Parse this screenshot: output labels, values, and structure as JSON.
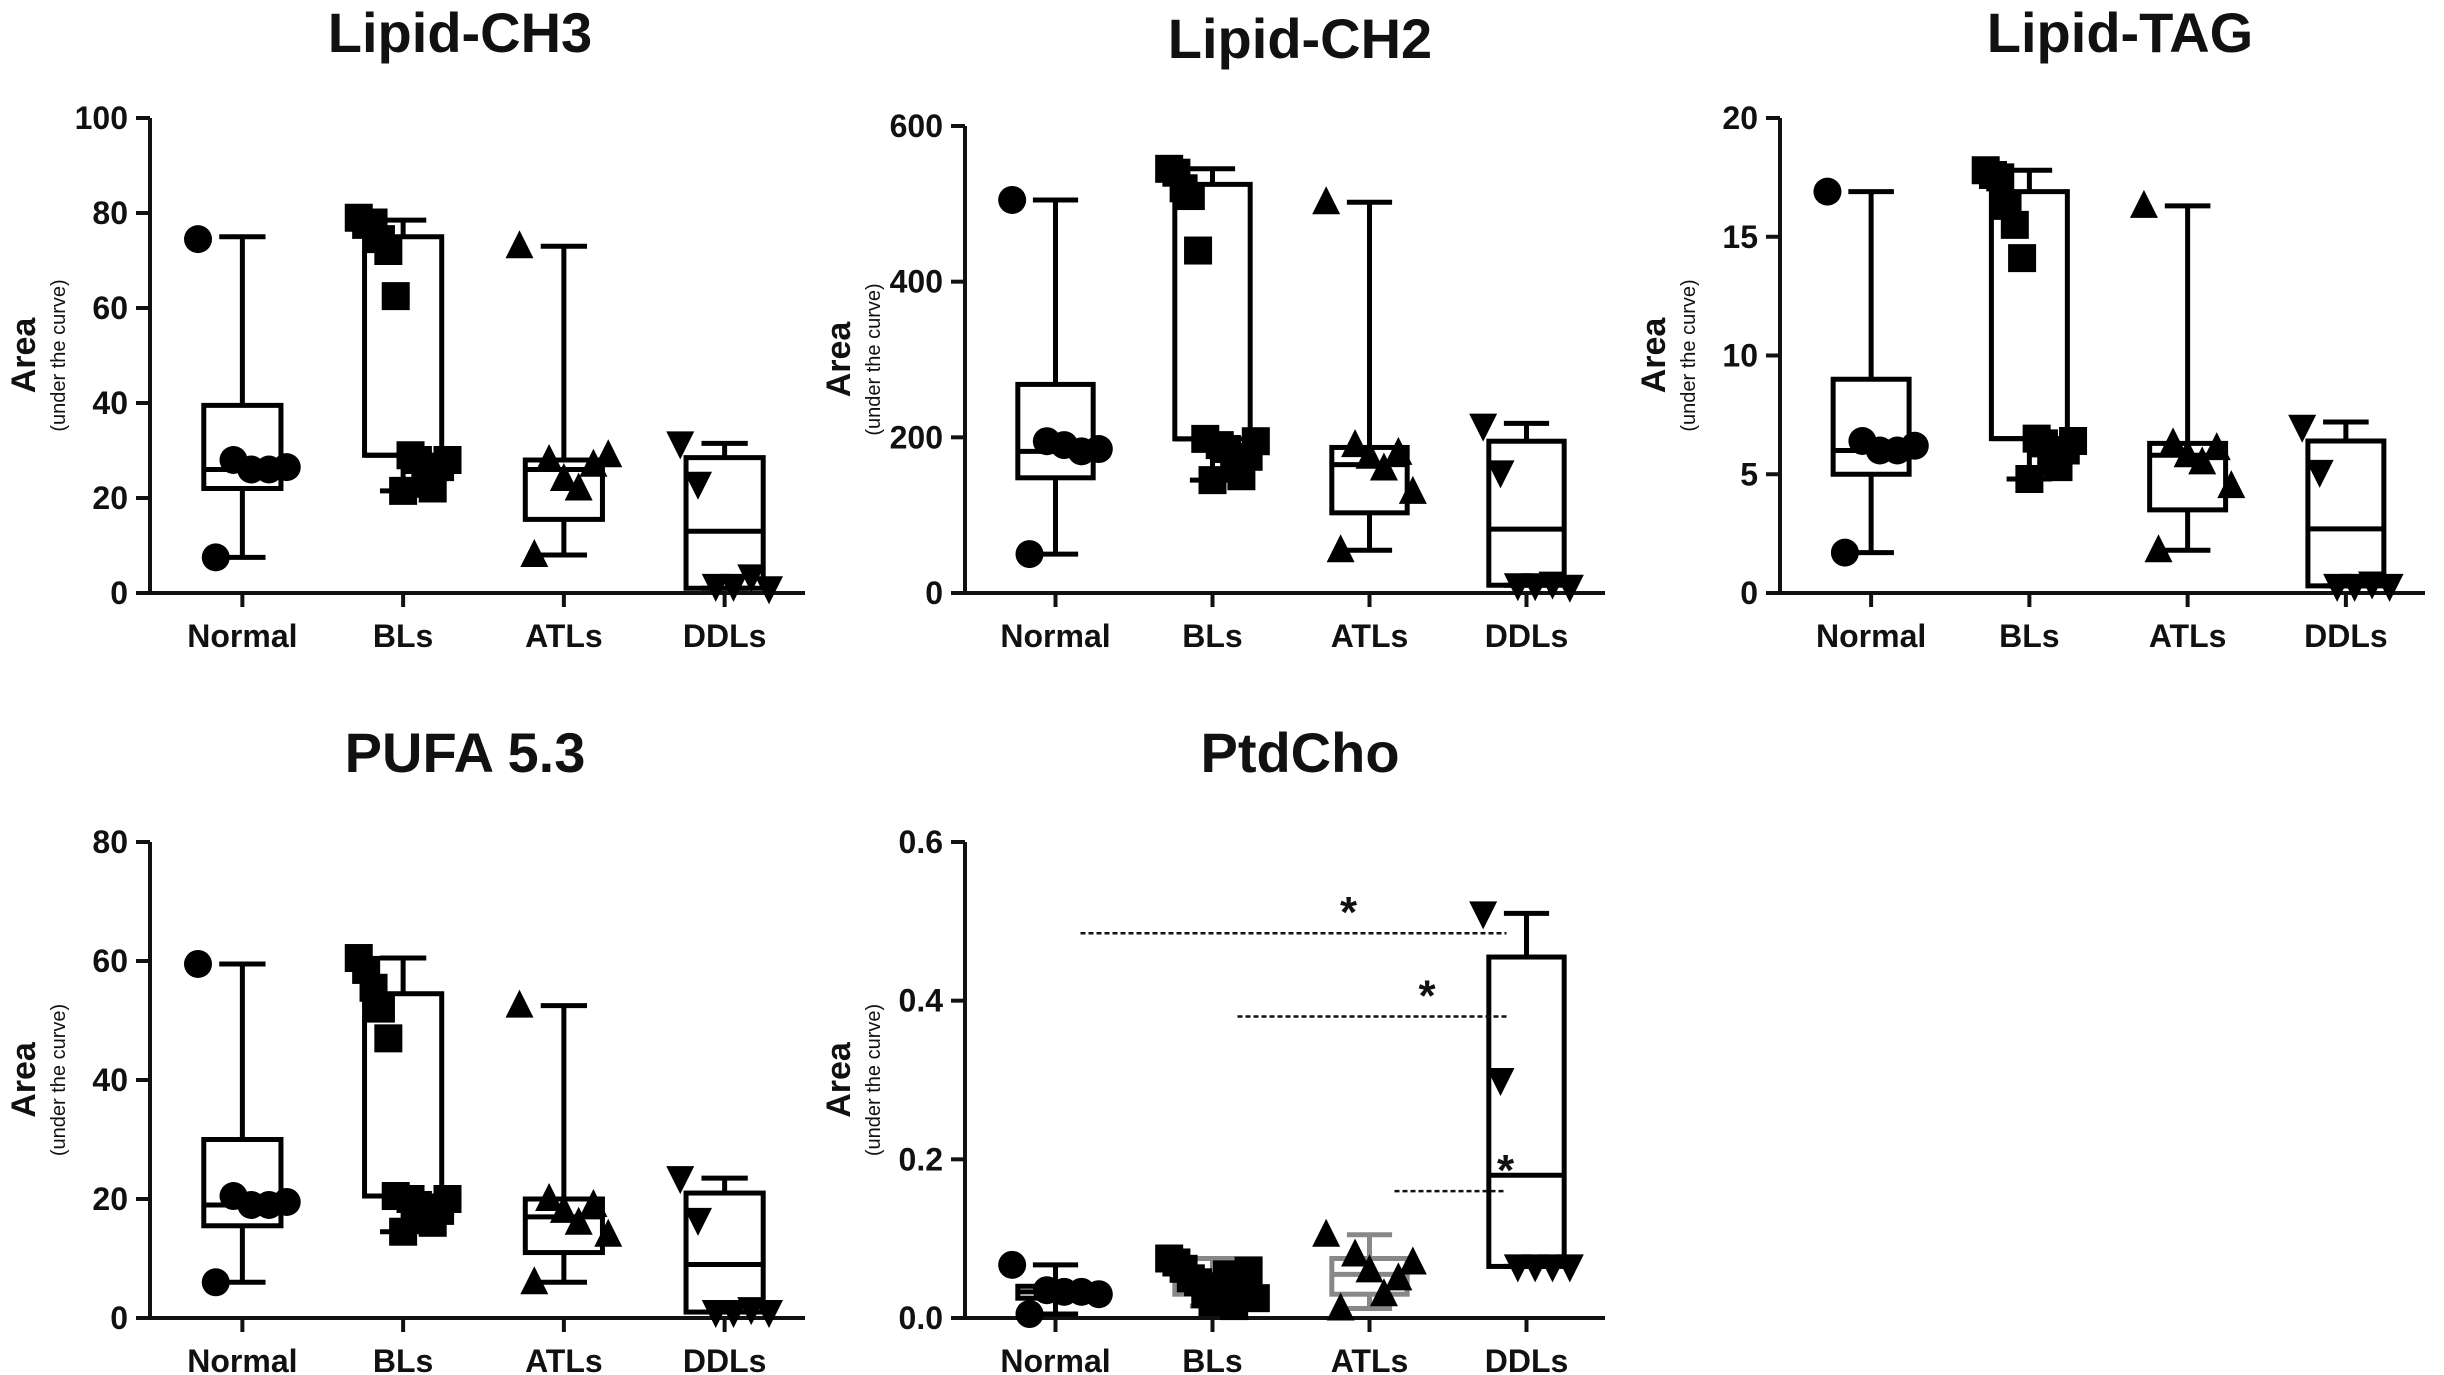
{
  "chart_data": [
    {
      "type": "box",
      "title": "Lipid-CH3",
      "ylabel": "Area",
      "ylabel_sub": "(under the curve)",
      "ylim": [
        0,
        100
      ],
      "yticks": [
        0,
        20,
        40,
        60,
        80,
        100
      ],
      "categories": [
        "Normal",
        "BLs",
        "ATLs",
        "DDLs"
      ],
      "boxes": [
        {
          "min": 7.5,
          "q1": 22,
          "median": 26,
          "q3": 39.5,
          "max": 75,
          "color": "#000000"
        },
        {
          "min": 21.5,
          "q1": 29,
          "median": 29,
          "q3": 75,
          "max": 78.5,
          "color": "#000000"
        },
        {
          "min": 8,
          "q1": 15.5,
          "median": 26,
          "q3": 28,
          "max": 73,
          "color": "#000000"
        },
        {
          "min": 1,
          "q1": 1,
          "median": 13,
          "q3": 28.5,
          "max": 31.5,
          "color": "#000000"
        }
      ],
      "points": [
        {
          "marker": "circle",
          "values": [
            74.5,
            7.5,
            28,
            26,
            26,
            26.5
          ]
        },
        {
          "marker": "square",
          "values": [
            79,
            77.5,
            78,
            74.5,
            72,
            62.5,
            21.5,
            29,
            28,
            23,
            22,
            26.5,
            28
          ]
        },
        {
          "marker": "triangle-up",
          "values": [
            73,
            8,
            28,
            24,
            22,
            27,
            29
          ]
        },
        {
          "marker": "triangle-down",
          "values": [
            31.5,
            23,
            1.5,
            1.5,
            3.5,
            1
          ]
        }
      ],
      "significance": []
    },
    {
      "type": "box",
      "title": "Lipid-CH2",
      "ylabel": "Area",
      "ylabel_sub": "(under the curve)",
      "ylim": [
        0,
        600
      ],
      "yticks": [
        0,
        200,
        400,
        600
      ],
      "categories": [
        "Normal",
        "BLs",
        "ATLs",
        "DDLs"
      ],
      "boxes": [
        {
          "min": 50,
          "q1": 148,
          "median": 182,
          "q3": 268,
          "max": 505,
          "color": "#000000"
        },
        {
          "min": 145,
          "q1": 198,
          "median": 198,
          "q3": 525,
          "max": 545,
          "color": "#000000"
        },
        {
          "min": 55,
          "q1": 103,
          "median": 165,
          "q3": 187,
          "max": 502,
          "color": "#000000"
        },
        {
          "min": 10,
          "q1": 10,
          "median": 82,
          "q3": 195,
          "max": 218,
          "color": "#000000"
        }
      ],
      "points": [
        {
          "marker": "circle",
          "values": [
            505,
            50,
            195,
            190,
            182,
            185
          ]
        },
        {
          "marker": "square",
          "values": [
            545,
            540,
            520,
            510,
            440,
            198,
            145,
            190,
            185,
            160,
            150,
            175,
            195
          ]
        },
        {
          "marker": "triangle-up",
          "values": [
            502,
            55,
            190,
            175,
            160,
            180,
            130
          ]
        },
        {
          "marker": "triangle-down",
          "values": [
            215,
            155,
            10,
            10,
            12,
            8
          ]
        }
      ],
      "significance": []
    },
    {
      "type": "box",
      "title": "Lipid-TAG",
      "ylabel": "Area",
      "ylabel_sub": "(under the curve)",
      "ylim": [
        0,
        20
      ],
      "yticks": [
        0,
        5,
        10,
        15,
        20
      ],
      "categories": [
        "Normal",
        "BLs",
        "ATLs",
        "DDLs"
      ],
      "boxes": [
        {
          "min": 1.7,
          "q1": 5,
          "median": 6,
          "q3": 9,
          "max": 16.9,
          "color": "#000000"
        },
        {
          "min": 4.8,
          "q1": 6.5,
          "median": 6.5,
          "q3": 16.9,
          "max": 17.8,
          "color": "#000000"
        },
        {
          "min": 1.8,
          "q1": 3.5,
          "median": 5.8,
          "q3": 6.3,
          "max": 16.3,
          "color": "#000000"
        },
        {
          "min": 0.3,
          "q1": 0.3,
          "median": 2.7,
          "q3": 6.4,
          "max": 7.2,
          "color": "#000000"
        }
      ],
      "points": [
        {
          "marker": "circle",
          "values": [
            16.9,
            1.7,
            6.4,
            6,
            6,
            6.2
          ]
        },
        {
          "marker": "square",
          "values": [
            17.8,
            17.6,
            17.5,
            16.3,
            15.5,
            14.1,
            4.8,
            6.5,
            6.3,
            5.5,
            5.3,
            6,
            6.4
          ]
        },
        {
          "marker": "triangle-up",
          "values": [
            16.3,
            1.8,
            6.3,
            5.8,
            5.5,
            6.1,
            4.5
          ]
        },
        {
          "marker": "triangle-down",
          "values": [
            7,
            5.1,
            0.3,
            0.3,
            0.4,
            0.3
          ]
        }
      ],
      "significance": []
    },
    {
      "type": "box",
      "title": "PUFA 5.3",
      "ylabel": "Area",
      "ylabel_sub": "(under the curve)",
      "ylim": [
        0,
        80
      ],
      "yticks": [
        0,
        20,
        40,
        60,
        80
      ],
      "categories": [
        "Normal",
        "BLs",
        "ATLs",
        "DDLs"
      ],
      "boxes": [
        {
          "min": 6,
          "q1": 15.5,
          "median": 19,
          "q3": 30,
          "max": 59.5,
          "color": "#000000"
        },
        {
          "min": 14.5,
          "q1": 20.5,
          "median": 20.5,
          "q3": 54.5,
          "max": 60.5,
          "color": "#000000"
        },
        {
          "min": 6,
          "q1": 11,
          "median": 17,
          "q3": 20,
          "max": 52.5,
          "color": "#000000"
        },
        {
          "min": 1,
          "q1": 1,
          "median": 9,
          "q3": 21,
          "max": 23.5,
          "color": "#000000"
        }
      ],
      "points": [
        {
          "marker": "circle",
          "values": [
            59.5,
            6,
            20.5,
            19,
            19,
            19.5
          ]
        },
        {
          "marker": "square",
          "values": [
            60.5,
            58.5,
            55.5,
            52,
            47,
            20.5,
            14.5,
            20,
            19,
            17,
            16,
            18,
            20
          ]
        },
        {
          "marker": "triangle-up",
          "values": [
            52.5,
            6,
            20,
            18,
            16,
            19,
            14
          ]
        },
        {
          "marker": "triangle-down",
          "values": [
            23.5,
            16.5,
            1,
            1,
            1.5,
            1
          ]
        }
      ],
      "significance": []
    },
    {
      "type": "box",
      "title": "PtdCho",
      "ylabel": "Area",
      "ylabel_sub": "(under the curve)",
      "ylim": [
        0,
        0.6
      ],
      "yticks": [
        "0.0",
        "0.2",
        "0.4",
        "0.6"
      ],
      "ytick_values": [
        0,
        0.2,
        0.4,
        0.6
      ],
      "categories": [
        "Normal",
        "BLs",
        "ATLs",
        "DDLs"
      ],
      "boxes": [
        {
          "min": 0.005,
          "q1": 0.025,
          "median": 0.033,
          "q3": 0.04,
          "max": 0.067,
          "color": "#000000"
        },
        {
          "min": 0.015,
          "q1": 0.03,
          "median": 0.045,
          "q3": 0.058,
          "max": 0.075,
          "color": "#888888"
        },
        {
          "min": 0.012,
          "q1": 0.03,
          "median": 0.055,
          "q3": 0.075,
          "max": 0.105,
          "color": "#888888"
        },
        {
          "min": 0.065,
          "q1": 0.065,
          "median": 0.18,
          "q3": 0.455,
          "max": 0.51,
          "color": "#000000"
        }
      ],
      "points": [
        {
          "marker": "circle",
          "values": [
            0.067,
            0.005,
            0.035,
            0.033,
            0.033,
            0.03
          ]
        },
        {
          "marker": "square",
          "values": [
            0.075,
            0.07,
            0.062,
            0.05,
            0.045,
            0.03,
            0.02,
            0.04,
            0.055,
            0.015,
            0.035,
            0.06,
            0.025
          ]
        },
        {
          "marker": "triangle-up",
          "values": [
            0.105,
            0.012,
            0.08,
            0.06,
            0.03,
            0.05,
            0.07
          ]
        },
        {
          "marker": "triangle-down",
          "values": [
            0.51,
            0.3,
            0.065,
            0.065,
            0.065,
            0.065
          ]
        }
      ],
      "significance": [
        {
          "label": "*",
          "from": 0,
          "to": 3,
          "y": 0.485
        },
        {
          "label": "*",
          "from": 1,
          "to": 3,
          "y": 0.38
        },
        {
          "label": "*",
          "from": 2,
          "to": 3,
          "y": 0.16
        }
      ]
    }
  ]
}
